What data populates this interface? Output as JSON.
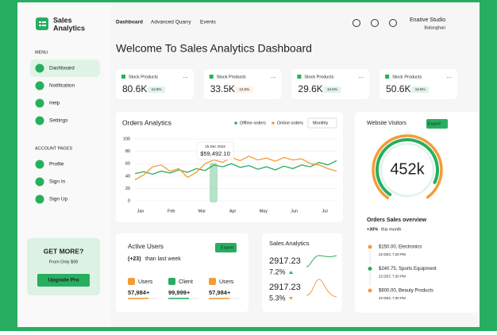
{
  "sidebar": {
    "brand": [
      "Sales",
      "Analytics"
    ],
    "menu_title": "MENU",
    "menu": [
      "Dashboard",
      "Notification",
      "Help",
      "Settings"
    ],
    "account_title": "ACCOUNT PAGES",
    "account": [
      "Profile",
      "Sign In",
      "Sign Up"
    ],
    "promo": {
      "title": "GET MORE?",
      "subtitle": "From Only $99",
      "button": "Upgrade Pro"
    }
  },
  "nav": {
    "tabs": [
      "Dashboard",
      "Advanced Quarry",
      "Events"
    ],
    "user": {
      "name": "Enative Studio",
      "location": "Batanghari"
    }
  },
  "page_title": "Welcome To Sales Analytics Dashboard",
  "stats": [
    {
      "label": "Stock Products",
      "value": "80.6K",
      "badge": "12.6%",
      "color": "#27ae60"
    },
    {
      "label": "Stock Products",
      "value": "33.5K",
      "badge": "12.6%",
      "color": "#f39c34"
    },
    {
      "label": "Stock Products",
      "value": "29.6K",
      "badge": "12.6%",
      "color": "#27ae60"
    },
    {
      "label": "Stock Products",
      "value": "50.6K",
      "badge": "12.6%",
      "color": "#27ae60"
    }
  ],
  "orders_chart": {
    "type": "line",
    "title": "Orders Analytics",
    "period": "Monthly",
    "categories": [
      "Jan",
      "Feb",
      "Mar",
      "Apr",
      "May",
      "Jun",
      "Jul"
    ],
    "ylim": [
      0,
      100
    ],
    "yticks": [
      0,
      20,
      40,
      60,
      80,
      100
    ],
    "tooltip": {
      "date": "15 Dec 2024",
      "value": "$59,492.10"
    },
    "series": [
      {
        "name": "Offline orders",
        "color": "#27ae60",
        "values": [
          44,
          47,
          43,
          48,
          45,
          50,
          46,
          52,
          49,
          58,
          55,
          60,
          54,
          57,
          51,
          55,
          50,
          56,
          52,
          58,
          55,
          62,
          58,
          65
        ]
      },
      {
        "name": "Online orders",
        "color": "#f39c34",
        "values": [
          34,
          42,
          55,
          58,
          48,
          52,
          38,
          46,
          60,
          66,
          62,
          70,
          65,
          72,
          66,
          69,
          64,
          70,
          66,
          68,
          60,
          58,
          52,
          48
        ]
      }
    ]
  },
  "visitors": {
    "title": "Website Visitors",
    "button": "Export",
    "value": "452k",
    "overview_title": "Orders Sales overview",
    "overview_change": "+30%",
    "overview_suffix": "this month",
    "items": [
      {
        "title": "$150.00, Electronics",
        "date": "22 DEC 7:20 PM"
      },
      {
        "title": "$240.75, Sports Equipment",
        "date": "22 DEC 7:20 PM"
      },
      {
        "title": "$600.00, Beauty Products",
        "date": "22 DEC 7:20 PM"
      }
    ]
  },
  "active_users": {
    "title": "Active Users",
    "change": "(+23)",
    "change_suffix": "than last week",
    "button": "Export",
    "items": [
      {
        "label": "Users",
        "value": "57,984+"
      },
      {
        "label": "Client",
        "value": "99,999+"
      },
      {
        "label": "Users",
        "value": "57,984+"
      }
    ]
  },
  "sales": {
    "title": "Sales Analytics",
    "rows": [
      {
        "value": "2917.23",
        "change": "7.2%"
      },
      {
        "value": "2917.23",
        "change": "5.3%"
      }
    ]
  }
}
